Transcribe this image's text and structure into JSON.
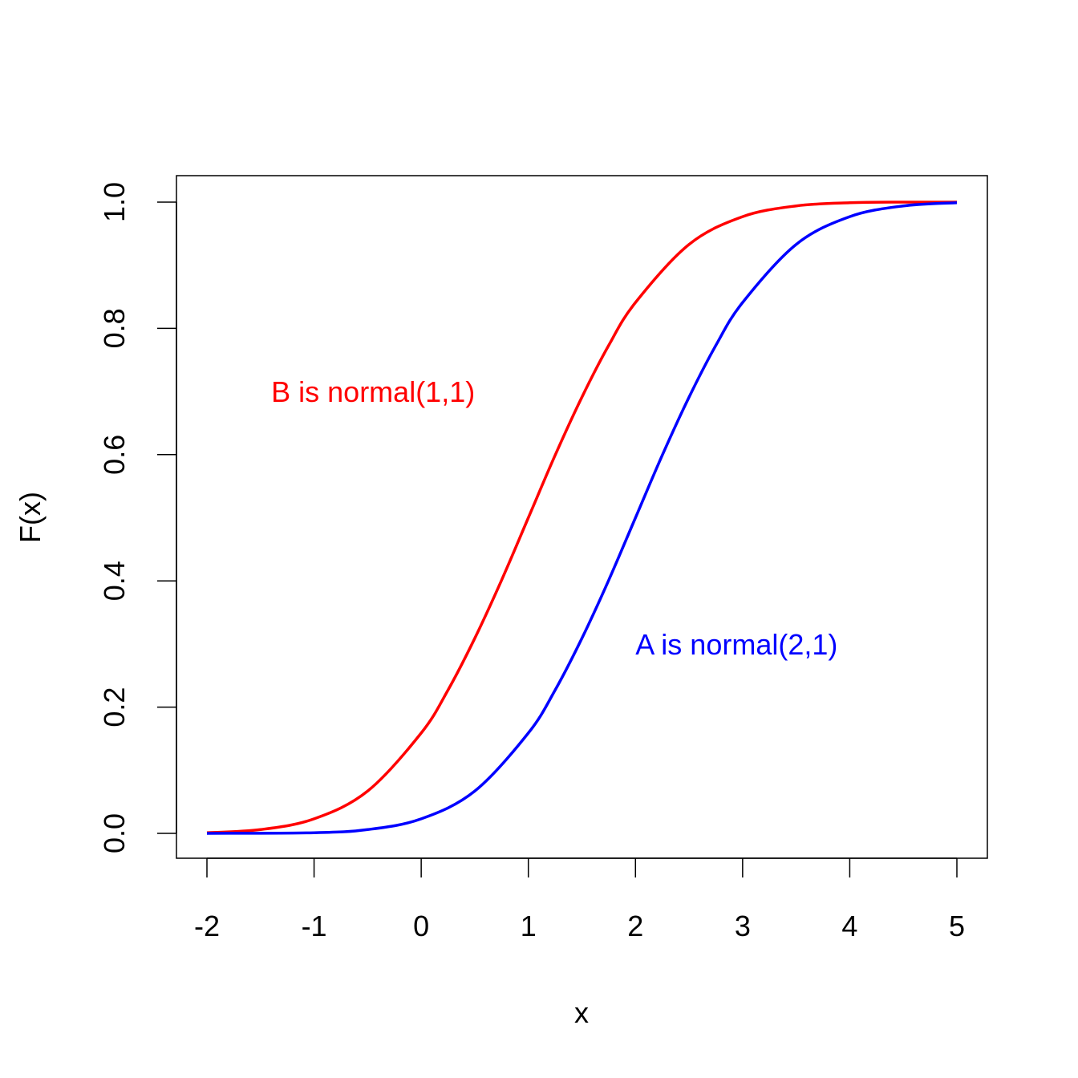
{
  "chart_data": {
    "type": "line",
    "title": "",
    "xlabel": "x",
    "ylabel": "F(x)",
    "xlim": [
      -2,
      5
    ],
    "ylim": [
      0,
      1
    ],
    "xticks": [
      "-2",
      "-1",
      "0",
      "1",
      "2",
      "3",
      "4",
      "5"
    ],
    "yticks": [
      "0.0",
      "0.2",
      "0.4",
      "0.6",
      "0.8",
      "1.0"
    ],
    "grid": false,
    "legend": "none",
    "series": [
      {
        "color": "#ff0000",
        "x": [
          -2.0,
          -1.5,
          -1.0,
          -0.5,
          0.0,
          0.25,
          0.5,
          0.75,
          1.0,
          1.25,
          1.5,
          1.75,
          2.0,
          2.5,
          3.0,
          3.5,
          4.0,
          4.5,
          5.0
        ],
        "y": [
          0.001,
          0.006,
          0.023,
          0.067,
          0.159,
          0.227,
          0.309,
          0.401,
          0.5,
          0.599,
          0.691,
          0.773,
          0.841,
          0.933,
          0.977,
          0.994,
          0.999,
          1.0,
          1.0
        ]
      },
      {
        "color": "#0000ff",
        "x": [
          -2.0,
          -1.0,
          -0.5,
          0.0,
          0.5,
          1.0,
          1.25,
          1.5,
          1.75,
          2.0,
          2.25,
          2.5,
          2.75,
          3.0,
          3.5,
          4.0,
          4.5,
          5.0
        ],
        "y": [
          0.0,
          0.001,
          0.006,
          0.023,
          0.067,
          0.159,
          0.227,
          0.309,
          0.401,
          0.5,
          0.599,
          0.691,
          0.773,
          0.841,
          0.933,
          0.977,
          0.994,
          0.999
        ]
      }
    ],
    "annotations": [
      {
        "text": "B is normal(1,1)",
        "x": -1.4,
        "y": 0.7,
        "color": "#ff0000"
      },
      {
        "text": "A is normal(2,1)",
        "x": 2.0,
        "y": 0.3,
        "color": "#0000ff"
      }
    ]
  }
}
